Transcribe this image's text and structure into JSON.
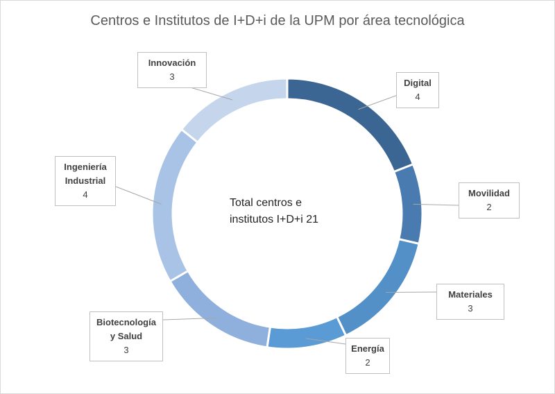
{
  "chart_data": {
    "type": "donut",
    "title": "Centros e Institutos de I+D+i de la UPM por área tecnológica",
    "center_text": "Total centros e institutos I+D+i 21",
    "categories": [
      "Digital",
      "Movilidad",
      "Materiales",
      "Energía",
      "Biotecnología  y Salud",
      "Ingeniería Industrial",
      "Innovación"
    ],
    "values": [
      4,
      2,
      3,
      2,
      3,
      4,
      3
    ],
    "colors": [
      "#3b6593",
      "#4a7bb0",
      "#5390c8",
      "#5b9bd5",
      "#8fb0dc",
      "#a9c3e6",
      "#c5d5ec"
    ]
  }
}
